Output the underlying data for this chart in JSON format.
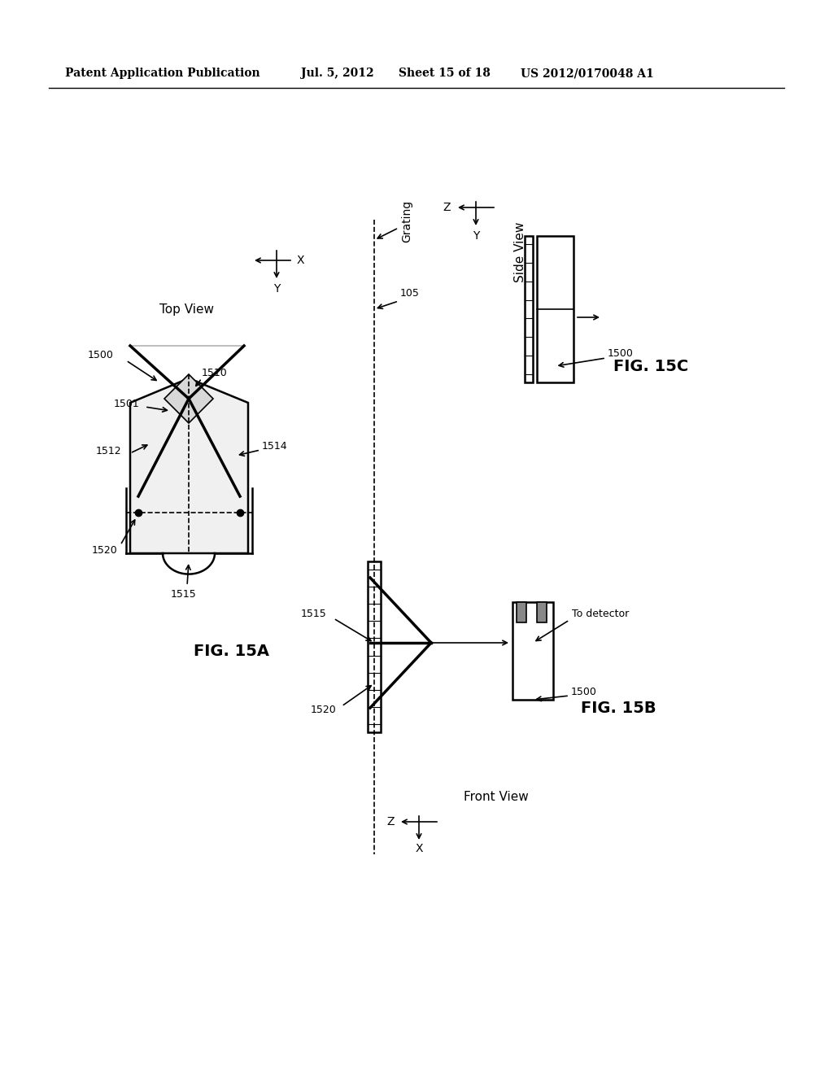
{
  "bg_color": "#ffffff",
  "header_text": "Patent Application Publication",
  "header_date": "Jul. 5, 2012",
  "header_sheet": "Sheet 15 of 18",
  "header_patent": "US 2012/0170048 A1",
  "fig15a_label": "FIG. 15A",
  "fig15b_label": "FIG. 15B",
  "fig15c_label": "FIG. 15C",
  "top_view_label": "Top View",
  "side_view_label": "Side View",
  "front_view_label": "Front View",
  "grating_label": "Grating",
  "to_detector_label": "To detector",
  "labels": {
    "1500_a": "1500",
    "1501": "1501",
    "1510": "1510",
    "1512": "1512",
    "1514": "1514",
    "1515": "1515",
    "1520": "1520",
    "105": "105",
    "1500_b": "1500",
    "1515_b": "1515",
    "1520_b": "1520",
    "1500_c": "1500"
  }
}
